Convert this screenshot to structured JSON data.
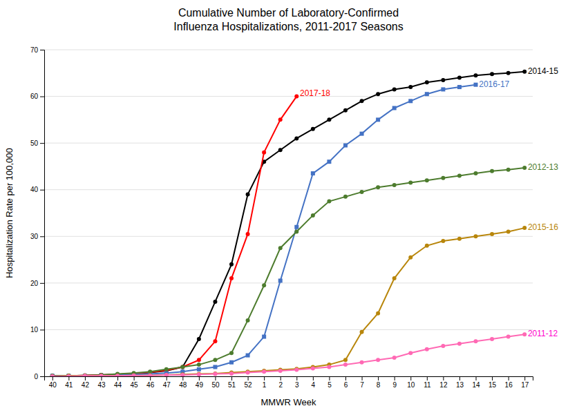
{
  "chart_data": {
    "type": "line",
    "title": "Cumulative Number of Laboratory-Confirmed\nInfluenza Hospitalizations, 2011-2017 Seasons",
    "xlabel": "MMWR Week",
    "ylabel": "Hospitalization Rate per 100,000",
    "categories": [
      "40",
      "41",
      "42",
      "43",
      "44",
      "45",
      "46",
      "47",
      "48",
      "49",
      "50",
      "51",
      "52",
      "1",
      "2",
      "3",
      "4",
      "5",
      "6",
      "7",
      "8",
      "9",
      "10",
      "11",
      "12",
      "13",
      "14",
      "15",
      "16",
      "17"
    ],
    "ylim": [
      0,
      70
    ],
    "yticks": [
      0,
      10,
      20,
      30,
      40,
      50,
      60,
      70
    ],
    "grid": true,
    "series": [
      {
        "name": "2014-15",
        "color": "#000000",
        "marker": "circle",
        "values": [
          0.1,
          0.1,
          0.2,
          0.3,
          0.4,
          0.6,
          0.8,
          1.2,
          2.0,
          8.0,
          16.0,
          24.0,
          39.0,
          46.0,
          48.5,
          51.0,
          53.0,
          55.0,
          57.0,
          59.0,
          60.5,
          61.5,
          62.0,
          63.0,
          63.5,
          64.0,
          64.5,
          64.8,
          65.0,
          65.3
        ]
      },
      {
        "name": "2017-18",
        "color": "#ff0000",
        "marker": "circle",
        "values": [
          0.1,
          0.1,
          0.2,
          0.3,
          0.4,
          0.6,
          0.9,
          1.3,
          2.0,
          3.5,
          7.5,
          21.0,
          30.5,
          48.0,
          55.0,
          60.0,
          null,
          null,
          null,
          null,
          null,
          null,
          null,
          null,
          null,
          null,
          null,
          null,
          null,
          null
        ]
      },
      {
        "name": "2016-17",
        "color": "#4472c4",
        "marker": "square",
        "values": [
          0.1,
          0.1,
          0.1,
          0.2,
          0.3,
          0.4,
          0.5,
          0.7,
          1.0,
          1.5,
          2.0,
          3.0,
          4.5,
          8.5,
          20.5,
          32.0,
          43.5,
          46.0,
          49.5,
          52.0,
          55.0,
          57.5,
          59.0,
          60.5,
          61.5,
          62.0,
          62.5,
          null,
          null,
          null
        ]
      },
      {
        "name": "2012-13",
        "color": "#4d7c2e",
        "marker": "circle",
        "values": [
          0.1,
          0.1,
          0.2,
          0.3,
          0.5,
          0.7,
          1.0,
          1.5,
          2.0,
          2.5,
          3.5,
          5.0,
          12.0,
          19.5,
          27.5,
          31.0,
          34.5,
          37.5,
          38.5,
          39.5,
          40.5,
          41.0,
          41.5,
          42.0,
          42.5,
          43.0,
          43.5,
          44.0,
          44.3,
          44.7
        ]
      },
      {
        "name": "2015-16",
        "color": "#b8860b",
        "marker": "circle",
        "values": [
          0.0,
          0.1,
          0.1,
          0.1,
          0.1,
          0.2,
          0.2,
          0.3,
          0.4,
          0.5,
          0.6,
          0.8,
          1.0,
          1.2,
          1.4,
          1.6,
          2.0,
          2.5,
          3.5,
          9.5,
          13.5,
          21.0,
          25.5,
          28.0,
          29.0,
          29.5,
          30.0,
          30.5,
          31.0,
          31.8
        ]
      },
      {
        "name": "2011-12",
        "color": "#ff69b4",
        "marker": "circle",
        "values": [
          0.0,
          0.0,
          0.1,
          0.1,
          0.1,
          0.2,
          0.2,
          0.3,
          0.3,
          0.4,
          0.5,
          0.6,
          0.8,
          1.0,
          1.2,
          1.4,
          1.7,
          2.0,
          2.5,
          3.0,
          3.5,
          4.0,
          5.0,
          5.8,
          6.5,
          7.0,
          7.5,
          8.0,
          8.5,
          9.0
        ]
      }
    ],
    "annotations": [
      {
        "text": "2014-15",
        "x": "17",
        "y": 65.3,
        "color": "#000000"
      },
      {
        "text": "2017-18",
        "x": "3",
        "y": 60.5,
        "color": "#ff0000"
      },
      {
        "text": "2016-17",
        "x": "14",
        "y": 62.5,
        "color": "#4472c4"
      },
      {
        "text": "2012-13",
        "x": "17",
        "y": 44.7,
        "color": "#4d7c2e"
      },
      {
        "text": "2015-16",
        "x": "17",
        "y": 31.8,
        "color": "#b8860b"
      },
      {
        "text": "2011-12",
        "x": "17",
        "y": 9.0,
        "color": "#ff00cc"
      }
    ]
  }
}
